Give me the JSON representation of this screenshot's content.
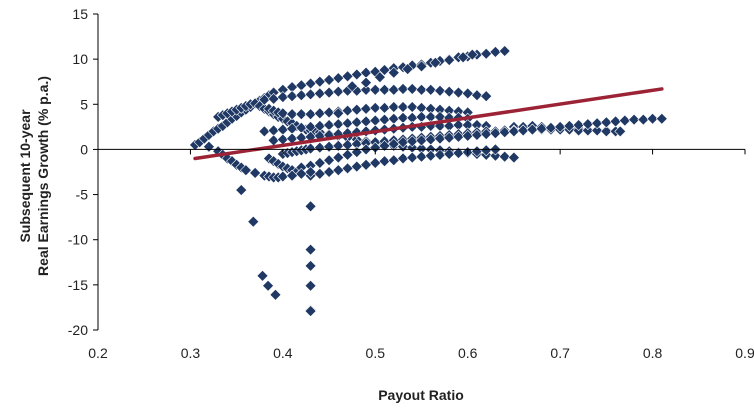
{
  "chart_data": {
    "type": "scatter",
    "title": "",
    "xlabel": "Payout Ratio",
    "ylabel_lines": [
      "Subsequent 10-year",
      "Real Earnings Growth (% p.a.)"
    ],
    "xlim": [
      0.2,
      0.9
    ],
    "ylim": [
      -20,
      15
    ],
    "x_ticks": [
      0.2,
      0.3,
      0.4,
      0.5,
      0.6,
      0.7,
      0.8,
      0.9
    ],
    "x_tick_labels": [
      "0.2",
      "0.3",
      "0.4",
      "0.5",
      "0.6",
      "0.7",
      "0.8",
      "0.9"
    ],
    "y_ticks": [
      -20,
      -15,
      -10,
      -5,
      0,
      5,
      10,
      15
    ],
    "y_tick_labels": [
      "-20",
      "-15",
      "-10",
      "-5",
      "0",
      "5",
      "10",
      "15"
    ],
    "grid": false,
    "legend": "none",
    "colors": {
      "points": "#1f3864",
      "trendline": "#9b2335",
      "axis": "#000000"
    },
    "trendline": {
      "x": [
        0.305,
        0.81
      ],
      "y": [
        -1.0,
        6.7
      ]
    },
    "points": {
      "x": [
        0.305,
        0.31,
        0.315,
        0.32,
        0.325,
        0.33,
        0.335,
        0.34,
        0.345,
        0.35,
        0.355,
        0.36,
        0.365,
        0.37,
        0.375,
        0.38,
        0.385,
        0.39,
        0.4,
        0.41,
        0.42,
        0.43,
        0.44,
        0.45,
        0.46,
        0.47,
        0.48,
        0.49,
        0.5,
        0.51,
        0.52,
        0.53,
        0.54,
        0.55,
        0.56,
        0.57,
        0.58,
        0.59,
        0.6,
        0.61,
        0.62,
        0.63,
        0.64,
        0.65,
        0.66,
        0.67,
        0.68,
        0.69,
        0.7,
        0.71,
        0.72,
        0.73,
        0.74,
        0.75,
        0.76,
        0.33,
        0.335,
        0.34,
        0.345,
        0.35,
        0.355,
        0.36,
        0.365,
        0.37,
        0.375,
        0.38,
        0.385,
        0.39,
        0.395,
        0.4,
        0.405,
        0.41,
        0.415,
        0.42,
        0.425,
        0.43,
        0.435,
        0.44,
        0.45,
        0.46,
        0.47,
        0.48,
        0.49,
        0.5,
        0.51,
        0.52,
        0.53,
        0.54,
        0.55,
        0.56,
        0.57,
        0.58,
        0.59,
        0.6,
        0.61,
        0.62,
        0.63,
        0.64,
        0.65,
        0.38,
        0.39,
        0.4,
        0.41,
        0.42,
        0.43,
        0.44,
        0.45,
        0.46,
        0.47,
        0.48,
        0.49,
        0.5,
        0.51,
        0.52,
        0.53,
        0.54,
        0.55,
        0.56,
        0.57,
        0.58,
        0.59,
        0.6,
        0.61,
        0.62,
        0.385,
        0.39,
        0.395,
        0.4,
        0.41,
        0.42,
        0.43,
        0.44,
        0.45,
        0.46,
        0.47,
        0.48,
        0.49,
        0.5,
        0.51,
        0.52,
        0.53,
        0.54,
        0.55,
        0.56,
        0.57,
        0.58,
        0.59,
        0.6,
        0.38,
        0.39,
        0.4,
        0.41,
        0.42,
        0.43,
        0.44,
        0.45,
        0.46,
        0.47,
        0.48,
        0.49,
        0.5,
        0.51,
        0.52,
        0.53,
        0.54,
        0.55,
        0.56,
        0.57,
        0.58,
        0.59,
        0.6,
        0.39,
        0.4,
        0.41,
        0.42,
        0.43,
        0.44,
        0.45,
        0.46,
        0.47,
        0.48,
        0.49,
        0.5,
        0.51,
        0.52,
        0.53,
        0.54,
        0.55,
        0.56,
        0.57,
        0.58,
        0.59,
        0.6,
        0.61,
        0.62,
        0.4,
        0.405,
        0.41,
        0.415,
        0.42,
        0.425,
        0.43,
        0.44,
        0.45,
        0.46,
        0.47,
        0.48,
        0.49,
        0.5,
        0.51,
        0.52,
        0.53,
        0.54,
        0.55,
        0.56,
        0.57,
        0.58,
        0.59,
        0.6,
        0.61,
        0.62,
        0.63,
        0.64,
        0.65,
        0.66,
        0.67,
        0.68,
        0.69,
        0.7,
        0.71,
        0.72,
        0.73,
        0.74,
        0.75,
        0.76,
        0.765,
        0.385,
        0.39,
        0.395,
        0.4,
        0.405,
        0.41,
        0.415,
        0.42,
        0.43,
        0.44,
        0.45,
        0.46,
        0.47,
        0.48,
        0.49,
        0.5,
        0.51,
        0.52,
        0.53,
        0.54,
        0.55,
        0.56,
        0.57,
        0.58,
        0.59,
        0.6,
        0.61,
        0.62,
        0.63,
        0.42,
        0.43,
        0.44,
        0.45,
        0.46,
        0.47,
        0.48,
        0.49,
        0.5,
        0.51,
        0.52,
        0.53,
        0.54,
        0.55,
        0.56,
        0.57,
        0.58,
        0.59,
        0.6,
        0.61,
        0.62,
        0.63,
        0.64,
        0.65,
        0.66,
        0.67,
        0.68,
        0.69,
        0.7,
        0.71,
        0.72,
        0.73,
        0.74,
        0.75,
        0.76,
        0.77,
        0.78,
        0.79,
        0.8,
        0.81,
        0.32,
        0.33,
        0.335,
        0.34,
        0.345,
        0.35,
        0.355,
        0.36,
        0.37,
        0.38,
        0.385,
        0.39,
        0.395,
        0.4,
        0.41,
        0.42,
        0.43,
        0.43,
        0.43,
        0.43,
        0.43,
        0.43,
        0.355,
        0.368,
        0.378,
        0.384,
        0.392,
        0.43,
        0.46,
        0.475,
        0.49,
        0.505,
        0.52,
        0.535,
        0.55,
        0.565,
        0.58,
        0.595,
        0.605
      ],
      "y": [
        0.5,
        0.8,
        1.2,
        1.6,
        2.0,
        2.3,
        2.6,
        3.0,
        3.4,
        3.7,
        4.1,
        4.4,
        4.7,
        5.1,
        5.4,
        5.7,
        6.0,
        6.3,
        6.6,
        6.9,
        7.1,
        7.3,
        7.5,
        7.7,
        7.9,
        8.1,
        8.3,
        8.5,
        8.6,
        8.8,
        9.0,
        9.1,
        9.3,
        9.4,
        9.6,
        9.8,
        10.0,
        10.2,
        10.3,
        10.5,
        10.6,
        10.8,
        10.9,
        2.5,
        2.5,
        2.6,
        2.5,
        2.4,
        2.4,
        2.3,
        2.3,
        2.2,
        2.1,
        2.1,
        2.0,
        3.6,
        3.8,
        4.0,
        4.2,
        4.4,
        4.6,
        4.8,
        5.0,
        5.1,
        4.8,
        4.5,
        4.2,
        3.9,
        3.6,
        3.4,
        3.1,
        2.9,
        2.6,
        2.4,
        2.2,
        2.1,
        2.0,
        1.9,
        1.7,
        1.5,
        1.3,
        1.1,
        0.9,
        0.7,
        0.6,
        0.4,
        0.3,
        0.2,
        0.1,
        0.0,
        -0.1,
        -0.2,
        -0.3,
        -0.4,
        -0.5,
        -0.6,
        -0.7,
        -0.8,
        -0.9,
        5.5,
        5.6,
        5.8,
        5.9,
        6.0,
        6.1,
        6.2,
        6.3,
        6.4,
        6.5,
        6.5,
        6.6,
        6.6,
        6.6,
        6.6,
        6.7,
        6.7,
        6.6,
        6.6,
        6.5,
        6.4,
        6.3,
        6.2,
        6.0,
        5.9,
        4.5,
        4.3,
        4.1,
        4.0,
        3.9,
        3.9,
        3.9,
        4.0,
        4.1,
        4.2,
        4.3,
        4.4,
        4.5,
        4.6,
        4.6,
        4.7,
        4.7,
        4.7,
        4.6,
        4.5,
        4.4,
        4.3,
        4.2,
        4.1,
        2.0,
        2.1,
        2.2,
        2.3,
        2.4,
        2.5,
        2.6,
        2.7,
        2.8,
        2.9,
        3.0,
        3.1,
        3.2,
        3.3,
        3.4,
        3.5,
        3.5,
        3.6,
        3.6,
        3.6,
        3.5,
        3.5,
        3.4,
        1.0,
        1.1,
        1.2,
        1.3,
        1.4,
        1.5,
        1.6,
        1.7,
        1.8,
        1.9,
        2.0,
        2.1,
        2.2,
        2.3,
        2.4,
        2.5,
        2.5,
        2.6,
        2.6,
        2.6,
        2.7,
        2.7,
        2.7,
        2.6,
        -0.5,
        -0.4,
        -0.3,
        -0.2,
        -0.1,
        0.0,
        0.1,
        0.2,
        0.3,
        0.4,
        0.5,
        0.6,
        0.7,
        0.8,
        0.9,
        1.0,
        1.1,
        1.2,
        1.3,
        1.4,
        1.5,
        1.6,
        1.7,
        1.8,
        1.9,
        2.0,
        2.0,
        2.1,
        2.1,
        2.1,
        2.2,
        2.2,
        2.2,
        2.2,
        2.2,
        2.1,
        2.1,
        2.1,
        2.0,
        2.0,
        2.0,
        -1.0,
        -1.3,
        -1.6,
        -1.9,
        -2.1,
        -2.3,
        -2.5,
        -2.7,
        -2.9,
        -2.7,
        -2.5,
        -2.3,
        -2.1,
        -1.9,
        -1.7,
        -1.5,
        -1.3,
        -1.2,
        -1.0,
        -0.9,
        -0.8,
        -0.7,
        -0.6,
        -0.5,
        -0.4,
        -0.3,
        -0.2,
        -0.1,
        0.0,
        -2.0,
        -1.8,
        -1.5,
        -1.2,
        -0.9,
        -0.6,
        -0.3,
        0.0,
        0.2,
        0.4,
        0.6,
        0.8,
        0.9,
        1.0,
        1.1,
        1.2,
        1.3,
        1.4,
        1.5,
        1.6,
        1.7,
        1.8,
        1.9,
        2.0,
        2.1,
        2.2,
        2.3,
        2.4,
        2.5,
        2.6,
        2.7,
        2.8,
        2.9,
        3.0,
        3.1,
        3.2,
        3.3,
        3.3,
        3.4,
        3.4,
        0.3,
        -0.2,
        -0.6,
        -1.0,
        -1.3,
        -1.7,
        -2.0,
        -2.3,
        -2.6,
        -2.9,
        -3.0,
        -3.1,
        -3.1,
        -3.0,
        -2.9,
        -2.7,
        -2.5,
        -6.3,
        -11.1,
        -12.9,
        -15.1,
        -17.8,
        -4.5,
        -8.0,
        -14.0,
        -15.1,
        -16.1,
        -17.9,
        4.0,
        7.0,
        7.4,
        8.0,
        8.5,
        8.9,
        9.2,
        9.6,
        9.9,
        10.2,
        10.5
      ]
    }
  }
}
